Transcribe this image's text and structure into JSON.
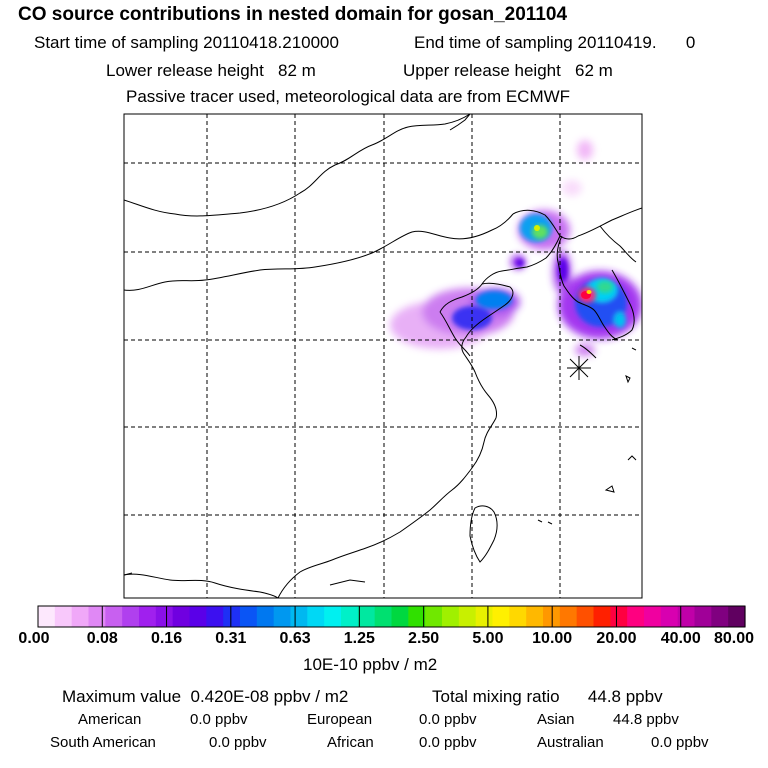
{
  "title": "CO  source contributions in nested domain for gosan_201104",
  "sampling": {
    "start_label": "Start time of sampling",
    "start_value": "20110418.210000",
    "end_label": "End time of sampling",
    "end_value": "20110419.",
    "end_extra": "0"
  },
  "release": {
    "lower_label": "Lower release height",
    "lower_value": "82 m",
    "upper_label": "Upper release height",
    "upper_value": "62 m"
  },
  "info_line": "Passive tracer used, meteorological data are from ECMWF",
  "colorbar": {
    "unit": "10E-10 ppbv / m2",
    "labels": [
      "0.00",
      "0.08",
      "0.16",
      "0.31",
      "0.63",
      "1.25",
      "2.50",
      "5.00",
      "10.00",
      "20.00",
      "40.00",
      "80.00"
    ],
    "colors": [
      "#fde8fd",
      "#f8c8fb",
      "#f0a8f8",
      "#e088f5",
      "#c860f0",
      "#b040ee",
      "#a020ee",
      "#8a10e8",
      "#7000e0",
      "#5a00e8",
      "#3c10f0",
      "#1e30f5",
      "#0a55f5",
      "#0078f0",
      "#0098f0",
      "#00b8f0",
      "#00d8f5",
      "#00f0f0",
      "#00f0c8",
      "#00e8a0",
      "#00e070",
      "#00d840",
      "#30e000",
      "#70e800",
      "#a0f000",
      "#c8f000",
      "#e8f000",
      "#fff000",
      "#ffd800",
      "#ffb800",
      "#ff9800",
      "#ff7800",
      "#ff5000",
      "#ff2000",
      "#ff0040",
      "#ff0080",
      "#f000a0",
      "#d800b0",
      "#c000a8",
      "#a00098",
      "#800080",
      "#600060"
    ]
  },
  "stats": {
    "max_label": "Maximum value",
    "max_value": "0.420E-08 ppbv / m2",
    "total_label": "Total mixing ratio",
    "total_value": "44.8 ppbv"
  },
  "regions": {
    "american_label": "American",
    "american_value": "0.0 ppbv",
    "european_label": "European",
    "european_value": "0.0 ppbv",
    "asian_label": "Asian",
    "asian_value": "44.8 ppbv",
    "south_american_label": "South American",
    "south_american_value": "0.0 ppbv",
    "african_label": "African",
    "african_value": "0.0 ppbv",
    "australian_label": "Australian",
    "australian_value": "0.0 ppbv"
  }
}
